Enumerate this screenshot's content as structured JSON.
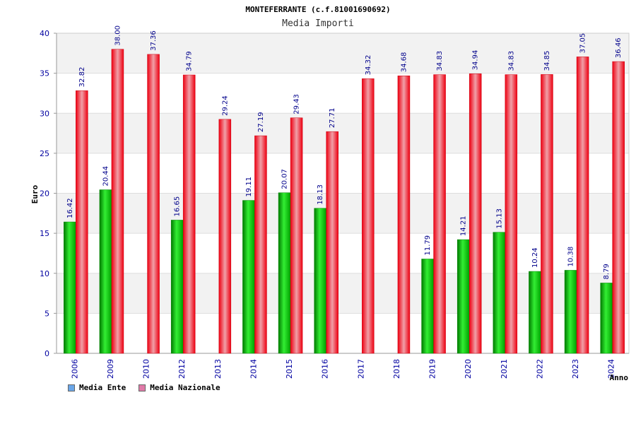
{
  "chart_data": {
    "type": "bar",
    "title": "MONTEFERRANTE (c.f.81001690692)",
    "subtitle": "Media Importi",
    "xlabel": "Anno",
    "ylabel": "Euro",
    "ylim": [
      0,
      40
    ],
    "yticks": [
      0,
      5,
      10,
      15,
      20,
      25,
      30,
      35,
      40
    ],
    "categories": [
      "2006",
      "2009",
      "2010",
      "2012",
      "2013",
      "2014",
      "2015",
      "2016",
      "2017",
      "2018",
      "2019",
      "2020",
      "2021",
      "2022",
      "2023",
      "2024"
    ],
    "series": [
      {
        "name": "Media Ente",
        "color": "#00bb00",
        "legend_color": "#6aa6e8",
        "values": [
          16.42,
          20.44,
          null,
          16.65,
          null,
          19.11,
          20.07,
          18.13,
          null,
          null,
          11.79,
          14.21,
          15.13,
          10.24,
          10.38,
          8.79
        ],
        "labels": [
          "16.42",
          "20.44",
          null,
          "16.65",
          null,
          "19.11",
          "20.07",
          "18.13",
          null,
          null,
          "11.79",
          "14.21",
          "15.13",
          "10.24",
          "10.38",
          "8.79"
        ]
      },
      {
        "name": "Media Nazionale",
        "color": "#ee1122",
        "legend_color": "#e07aa8",
        "values": [
          32.82,
          38.0,
          37.36,
          34.79,
          29.24,
          27.19,
          29.43,
          27.71,
          34.32,
          34.68,
          34.83,
          34.94,
          34.83,
          34.85,
          37.05,
          36.46
        ],
        "labels": [
          "32.82",
          "38.00",
          "37.36",
          "34.79",
          "29.24",
          "27.19",
          "29.43",
          "27.71",
          "34.32",
          "34.68",
          "34.83",
          "34.94",
          "34.83",
          "34.85",
          "37.05",
          "36.46"
        ]
      }
    ],
    "grid": true,
    "legend_position": "bottom-left"
  }
}
